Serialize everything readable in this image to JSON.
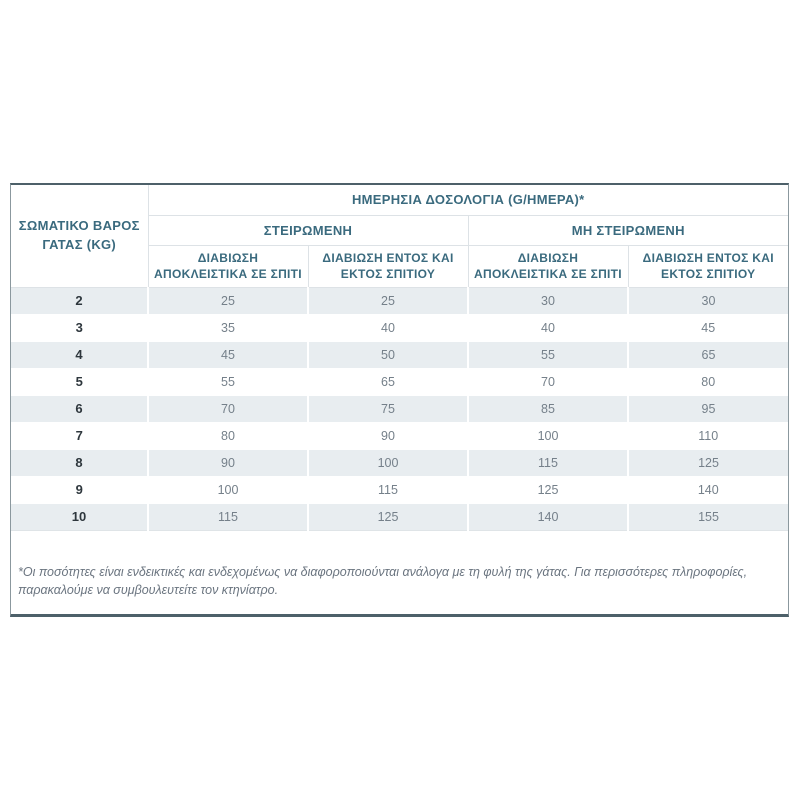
{
  "table": {
    "corner_header": "ΣΩΜΑΤΙΚΟ ΒΑΡΟΣ\nΓΑΤΑΣ (KG)",
    "main_header": "ΗΜΕΡΗΣΙΑ ΔΟΣΟΛΟΓΙΑ (G/ΗΜΕΡΑ)*",
    "groups": [
      {
        "label": "ΣΤΕΙΡΩΜΕΝΗ"
      },
      {
        "label": "ΜΗ ΣΤΕΙΡΩΜΕΝΗ"
      }
    ],
    "sub_headers": [
      "ΔΙΑΒΙΩΣΗ\nΑΠΟΚΛΕΙΣΤΙΚΑ ΣΕ ΣΠΙΤΙ",
      "ΔΙΑΒΙΩΣΗ ΕΝΤΟΣ ΚΑΙ\nΕΚΤΟΣ ΣΠΙΤΙΟΥ",
      "ΔΙΑΒΙΩΣΗ\nΑΠΟΚΛΕΙΣΤΙΚΑ ΣΕ ΣΠΙΤΙ",
      "ΔΙΑΒΙΩΣΗ ΕΝΤΟΣ ΚΑΙ\nΕΚΤΟΣ ΣΠΙΤΙΟΥ"
    ],
    "rows": [
      {
        "weight": "2",
        "values": [
          "25",
          "25",
          "30",
          "30"
        ]
      },
      {
        "weight": "3",
        "values": [
          "35",
          "40",
          "40",
          "45"
        ]
      },
      {
        "weight": "4",
        "values": [
          "45",
          "50",
          "55",
          "65"
        ]
      },
      {
        "weight": "5",
        "values": [
          "55",
          "65",
          "70",
          "80"
        ]
      },
      {
        "weight": "6",
        "values": [
          "70",
          "75",
          "85",
          "95"
        ]
      },
      {
        "weight": "7",
        "values": [
          "80",
          "90",
          "100",
          "110"
        ]
      },
      {
        "weight": "8",
        "values": [
          "90",
          "100",
          "115",
          "125"
        ]
      },
      {
        "weight": "9",
        "values": [
          "100",
          "115",
          "125",
          "140"
        ]
      },
      {
        "weight": "10",
        "values": [
          "115",
          "125",
          "140",
          "155"
        ]
      }
    ]
  },
  "footnote": {
    "text": "*Οι ποσότητες είναι ενδεικτικές και ενδεχομένως να διαφοροποιούνται ανάλογα με τη φυλή της γάτας. Για περισσότερες πληροφορίες, παρακαλούμε να συμβουλευτείτε τον κτηνίατρο."
  },
  "colors": {
    "header_text": "#3a6a7e",
    "row_stripe": "#e8edf0",
    "value_text": "#75808a",
    "weight_text": "#2e373d",
    "panel_border_dark": "#4d6069",
    "panel_border_light": "#8b989e",
    "cell_border_light": "#dde2e6",
    "footnote_text": "#6b7580"
  },
  "chart_data": {
    "type": "table",
    "title": "ΗΜΕΡΗΣΙΑ ΔΟΣΟΛΟΓΙΑ (G/ΗΜΕΡΑ)*",
    "row_axis_label": "ΣΩΜΑΤΙΚΟ ΒΑΡΟΣ ΓΑΤΑΣ (KG)",
    "column_groups": [
      "ΣΤΕΙΡΩΜΕΝΗ",
      "ΜΗ ΣΤΕΙΡΩΜΕΝΗ"
    ],
    "columns": [
      "ΣΤΕΙΡΩΜΕΝΗ - ΔΙΑΒΙΩΣΗ ΑΠΟΚΛΕΙΣΤΙΚΑ ΣΕ ΣΠΙΤΙ",
      "ΣΤΕΙΡΩΜΕΝΗ - ΔΙΑΒΙΩΣΗ ΕΝΤΟΣ ΚΑΙ ΕΚΤΟΣ ΣΠΙΤΙΟΥ",
      "ΜΗ ΣΤΕΙΡΩΜΕΝΗ - ΔΙΑΒΙΩΣΗ ΑΠΟΚΛΕΙΣΤΙΚΑ ΣΕ ΣΠΙΤΙ",
      "ΜΗ ΣΤΕΙΡΩΜΕΝΗ - ΔΙΑΒΙΩΣΗ ΕΝΤΟΣ ΚΑΙ ΕΚΤΟΣ ΣΠΙΤΙΟΥ"
    ],
    "categories": [
      2,
      3,
      4,
      5,
      6,
      7,
      8,
      9,
      10
    ],
    "series": [
      {
        "name": "ΣΤΕΙΡΩΜΕΝΗ - ΔΙΑΒΙΩΣΗ ΑΠΟΚΛΕΙΣΤΙΚΑ ΣΕ ΣΠΙΤΙ",
        "values": [
          25,
          35,
          45,
          55,
          70,
          80,
          90,
          100,
          115
        ]
      },
      {
        "name": "ΣΤΕΙΡΩΜΕΝΗ - ΔΙΑΒΙΩΣΗ ΕΝΤΟΣ ΚΑΙ ΕΚΤΟΣ ΣΠΙΤΙΟΥ",
        "values": [
          25,
          40,
          50,
          65,
          75,
          90,
          100,
          115,
          125
        ]
      },
      {
        "name": "ΜΗ ΣΤΕΙΡΩΜΕΝΗ - ΔΙΑΒΙΩΣΗ ΑΠΟΚΛΕΙΣΤΙΚΑ ΣΕ ΣΠΙΤΙ",
        "values": [
          30,
          40,
          55,
          70,
          85,
          100,
          115,
          125,
          140
        ]
      },
      {
        "name": "ΜΗ ΣΤΕΙΡΩΜΕΝΗ - ΔΙΑΒΙΩΣΗ ΕΝΤΟΣ ΚΑΙ ΕΚΤΟΣ ΣΠΙΤΙΟΥ",
        "values": [
          30,
          45,
          65,
          80,
          95,
          110,
          125,
          140,
          155
        ]
      }
    ],
    "units": "g/day",
    "footnote": "*Οι ποσότητες είναι ενδεικτικές και ενδεχομένως να διαφοροποιούνται ανάλογα με τη φυλή της γάτας. Για περισσότερες πληροφορίες, παρακαλούμε να συμβουλευτείτε τον κτηνίατρο."
  }
}
